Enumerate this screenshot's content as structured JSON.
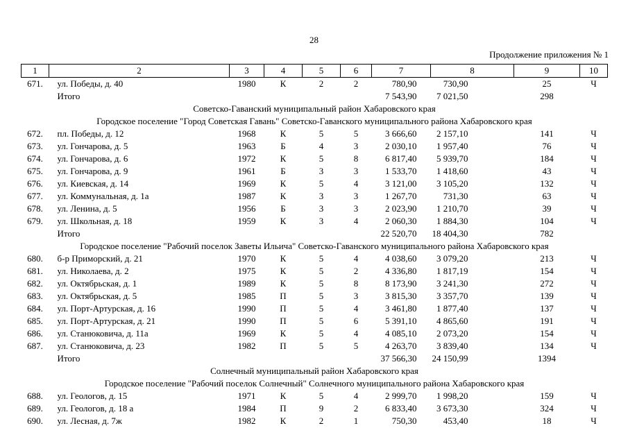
{
  "page": {
    "number": "28",
    "continuation": "Продолжение приложения № 1"
  },
  "table": {
    "columns": [
      "1",
      "2",
      "3",
      "4",
      "5",
      "6",
      "7",
      "8",
      "9",
      "10"
    ],
    "rows": [
      {
        "type": "data",
        "cells": [
          "671.",
          "ул. Победы, д. 40",
          "1980",
          "К",
          "2",
          "2",
          "780,90",
          "730,90",
          "25",
          "Ч"
        ]
      },
      {
        "type": "total",
        "cells": [
          "",
          "Итого",
          "",
          "",
          "",
          "",
          "7 543,90",
          "7 021,50",
          "298",
          ""
        ]
      },
      {
        "type": "section",
        "text": "Советско-Гаванский муниципальный район Хабаровского края"
      },
      {
        "type": "section",
        "text": "Городское поселение \"Город Советская Гавань\" Советско-Гаванского муниципального района Хабаровского края"
      },
      {
        "type": "data",
        "cells": [
          "672.",
          "пл. Победы, д. 12",
          "1968",
          "К",
          "5",
          "5",
          "3 666,60",
          "2 157,10",
          "141",
          "Ч"
        ]
      },
      {
        "type": "data",
        "cells": [
          "673.",
          "ул. Гончарова, д. 5",
          "1963",
          "Б",
          "4",
          "3",
          "2 030,10",
          "1 957,40",
          "76",
          "Ч"
        ]
      },
      {
        "type": "data",
        "cells": [
          "674.",
          "ул. Гончарова, д. 6",
          "1972",
          "К",
          "5",
          "8",
          "6 817,40",
          "5 939,70",
          "184",
          "Ч"
        ]
      },
      {
        "type": "data",
        "cells": [
          "675.",
          "ул. Гончарова, д. 9",
          "1961",
          "Б",
          "3",
          "3",
          "1 533,70",
          "1 418,60",
          "43",
          "Ч"
        ]
      },
      {
        "type": "data",
        "cells": [
          "676.",
          "ул. Киевская, д. 14",
          "1969",
          "К",
          "5",
          "4",
          "3 121,00",
          "3 105,20",
          "132",
          "Ч"
        ]
      },
      {
        "type": "data",
        "cells": [
          "677.",
          "ул. Коммунальная, д. 1а",
          "1987",
          "К",
          "3",
          "3",
          "1 267,70",
          "731,30",
          "63",
          "Ч"
        ]
      },
      {
        "type": "data",
        "cells": [
          "678.",
          "ул. Ленина, д. 5",
          "1956",
          "Б",
          "3",
          "3",
          "2 023,90",
          "1 210,70",
          "39",
          "Ч"
        ]
      },
      {
        "type": "data",
        "cells": [
          "679.",
          "ул. Школьная, д. 18",
          "1959",
          "К",
          "3",
          "4",
          "2 060,30",
          "1 884,30",
          "104",
          "Ч"
        ]
      },
      {
        "type": "total",
        "cells": [
          "",
          "Итого",
          "",
          "",
          "",
          "",
          "22 520,70",
          "18 404,30",
          "782",
          ""
        ]
      },
      {
        "type": "section",
        "text": "Городское поселение \"Рабочий поселок Заветы Ильича\" Советско-Гаванского муниципального района Хабаровского края"
      },
      {
        "type": "data",
        "cells": [
          "680.",
          "б-р Приморский, д. 21",
          "1970",
          "К",
          "5",
          "4",
          "4 038,60",
          "3 079,20",
          "213",
          "Ч"
        ]
      },
      {
        "type": "data",
        "cells": [
          "681.",
          "ул. Николаева, д. 2",
          "1975",
          "К",
          "5",
          "2",
          "4 336,80",
          "1 817,19",
          "154",
          "Ч"
        ]
      },
      {
        "type": "data",
        "cells": [
          "682.",
          "ул. Октябрьская, д. 1",
          "1989",
          "К",
          "5",
          "8",
          "8 173,90",
          "3 241,30",
          "272",
          "Ч"
        ]
      },
      {
        "type": "data",
        "cells": [
          "683.",
          "ул. Октябрьская, д. 5",
          "1985",
          "П",
          "5",
          "3",
          "3 815,30",
          "3 357,70",
          "139",
          "Ч"
        ]
      },
      {
        "type": "data",
        "cells": [
          "684.",
          "ул. Порт-Артурская, д. 16",
          "1990",
          "П",
          "5",
          "4",
          "3 461,80",
          "1 877,40",
          "137",
          "Ч"
        ]
      },
      {
        "type": "data",
        "cells": [
          "685.",
          "ул. Порт-Артурская, д. 21",
          "1990",
          "П",
          "5",
          "6",
          "5 391,10",
          "4 865,60",
          "191",
          "Ч"
        ]
      },
      {
        "type": "data",
        "cells": [
          "686.",
          "ул. Станюковича, д. 11а",
          "1969",
          "К",
          "5",
          "4",
          "4 085,10",
          "2 073,20",
          "154",
          "Ч"
        ]
      },
      {
        "type": "data",
        "cells": [
          "687.",
          "ул. Станюковича, д. 23",
          "1982",
          "П",
          "5",
          "5",
          "4 263,70",
          "3 839,40",
          "134",
          "Ч"
        ]
      },
      {
        "type": "total",
        "cells": [
          "",
          "Итого",
          "",
          "",
          "",
          "",
          "37 566,30",
          "24 150,99",
          "1394",
          ""
        ]
      },
      {
        "type": "section",
        "text": "Солнечный муниципальный район Хабаровского края"
      },
      {
        "type": "section",
        "text": "Городское поселение \"Рабочий поселок Солнечный\" Солнечного муниципального района Хабаровского края"
      },
      {
        "type": "data",
        "cells": [
          "688.",
          "ул. Геологов, д. 15",
          "1971",
          "К",
          "5",
          "4",
          "2 999,70",
          "1 998,20",
          "159",
          "Ч"
        ]
      },
      {
        "type": "data",
        "cells": [
          "689.",
          "ул. Геологов, д. 18 а",
          "1984",
          "П",
          "9",
          "2",
          "6 833,40",
          "3 673,30",
          "324",
          "Ч"
        ]
      },
      {
        "type": "data",
        "cells": [
          "690.",
          "ул. Лесная, д. 7ж",
          "1982",
          "К",
          "2",
          "1",
          "750,30",
          "453,40",
          "18",
          "Ч"
        ]
      }
    ]
  }
}
